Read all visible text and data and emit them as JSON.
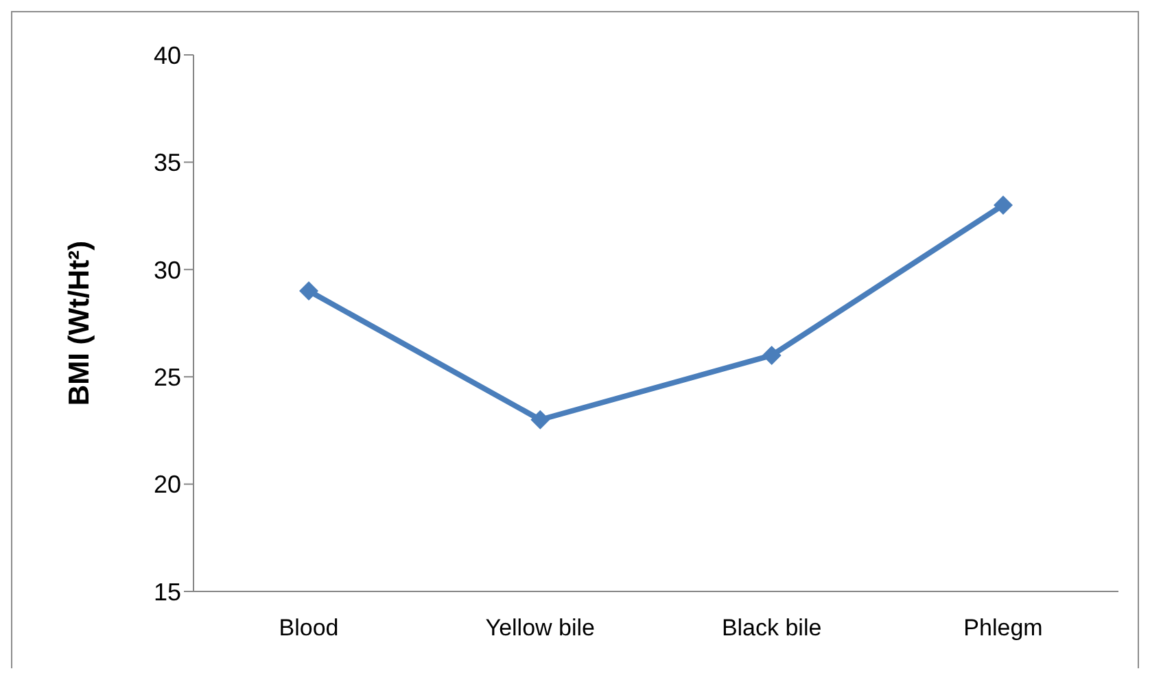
{
  "chart_data": {
    "type": "line",
    "ylabel": "BMI (Wt/Ht²)",
    "categories": [
      "Blood",
      "Yellow bile",
      "Black bile",
      "Phlegm"
    ],
    "series": [
      {
        "color": "#4a7ebb",
        "values": [
          29,
          23,
          26,
          33
        ]
      }
    ],
    "ylim": [
      15,
      40
    ],
    "yticks": [
      15,
      20,
      25,
      30,
      35,
      40
    ],
    "grid": false,
    "legend": false,
    "marker": "diamond",
    "line_style": "solid"
  }
}
